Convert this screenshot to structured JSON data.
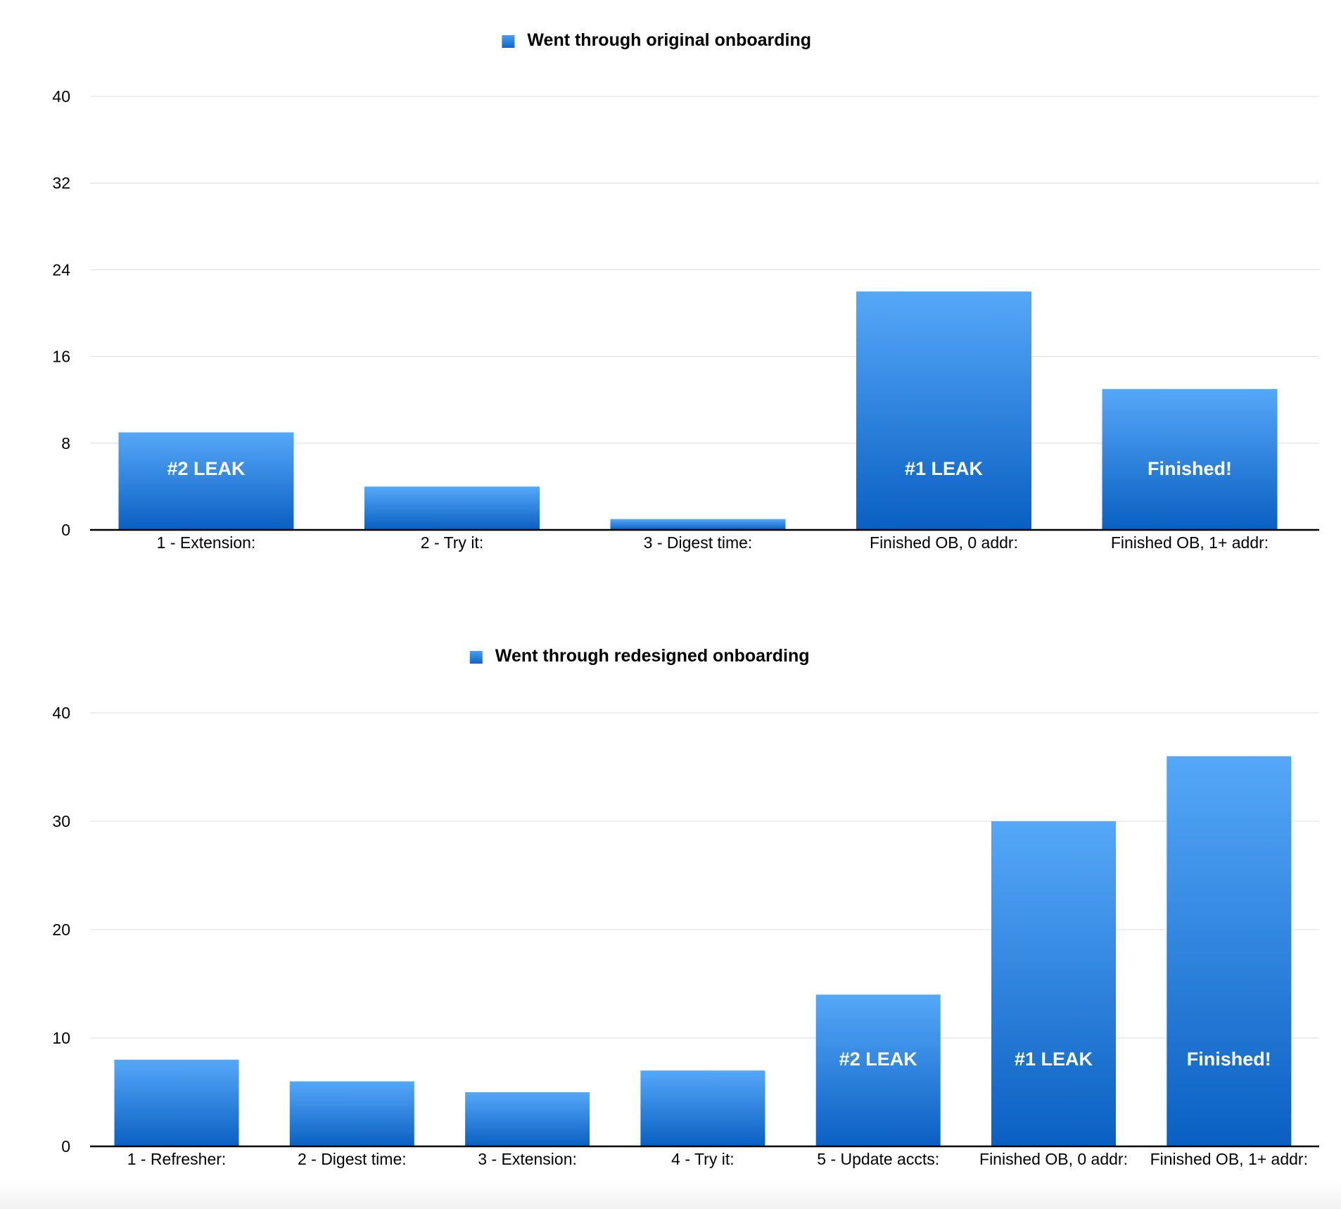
{
  "chart_data": [
    {
      "type": "bar",
      "legend": "Went through original onboarding",
      "legend_position": "top-center",
      "grid": true,
      "ylim": [
        0,
        40
      ],
      "yticks": [
        "0",
        "8",
        "16",
        "24",
        "32",
        "40"
      ],
      "categories": [
        "1 - Extension:",
        "2 - Try it:",
        "3 - Digest time:",
        "Finished OB, 0 addr:",
        "Finished OB, 1+ addr:"
      ],
      "values": [
        9,
        4,
        1,
        22,
        13
      ],
      "bar_labels": [
        "#2 LEAK",
        "",
        "",
        "#1 LEAK",
        "Finished!"
      ],
      "colors": {
        "bar_top": "#55a8f8",
        "bar_bottom": "#0a60c2",
        "legend": "#1a78dc"
      }
    },
    {
      "type": "bar",
      "legend": "Went through redesigned onboarding",
      "legend_position": "top-center",
      "grid": true,
      "ylim": [
        0,
        40
      ],
      "yticks": [
        "0",
        "10",
        "20",
        "30",
        "40"
      ],
      "categories": [
        "1 - Refresher:",
        "2 - Digest time:",
        "3 - Extension:",
        "4 - Try it:",
        "5 - Update accts:",
        "Finished OB, 0 addr:",
        "Finished OB, 1+ addr:"
      ],
      "values": [
        8,
        6,
        5,
        7,
        14,
        30,
        36
      ],
      "bar_labels": [
        "",
        "",
        "",
        "",
        "#2 LEAK",
        "#1 LEAK",
        "Finished!"
      ],
      "colors": {
        "bar_top": "#55a8f8",
        "bar_bottom": "#0a60c2",
        "legend": "#1a78dc"
      }
    }
  ]
}
